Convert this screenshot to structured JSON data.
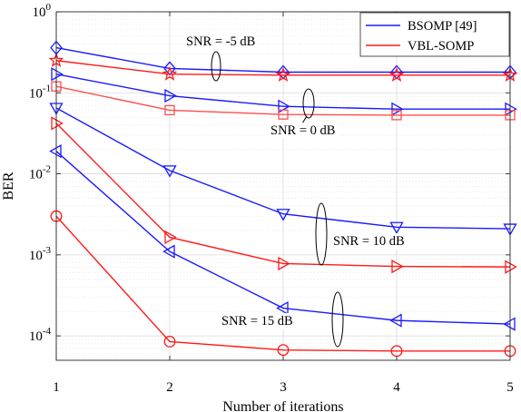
{
  "chart_data": {
    "type": "line",
    "xlabel": "Number of iterations",
    "ylabel": "BER",
    "y_scale": "log",
    "ylim": [
      5e-05,
      1
    ],
    "xlim": [
      1,
      5
    ],
    "x_ticks": [
      1,
      2,
      3,
      4,
      5
    ],
    "y_ticks": [
      {
        "value": 1,
        "mantissa": "10",
        "exp": "0"
      },
      {
        "value": 0.1,
        "mantissa": "10",
        "exp": "-1"
      },
      {
        "value": 0.01,
        "mantissa": "10",
        "exp": "-2"
      },
      {
        "value": 0.001,
        "mantissa": "10",
        "exp": "-3"
      },
      {
        "value": 0.0001,
        "mantissa": "10",
        "exp": "-4"
      }
    ],
    "grid": true,
    "legend_position": "top-right",
    "legend": [
      {
        "label": "BSOMP [49]",
        "color": "#1a1aff"
      },
      {
        "label": "VBL-SOMP",
        "color": "#ff1a1a"
      }
    ],
    "x": [
      1,
      2,
      3,
      4,
      5
    ],
    "series": [
      {
        "group": "SNR = -5 dB",
        "method": "BSOMP",
        "color": "#1a1aff",
        "marker": "diamond",
        "values": [
          0.36,
          0.2,
          0.18,
          0.18,
          0.18
        ]
      },
      {
        "group": "SNR = -5 dB",
        "method": "VBL-SOMP",
        "color": "#ff1a1a",
        "marker": "star",
        "values": [
          0.25,
          0.17,
          0.165,
          0.165,
          0.165
        ]
      },
      {
        "group": "SNR = 0 dB",
        "method": "BSOMP",
        "color": "#1a1aff",
        "marker": "triangle-right",
        "values": [
          0.17,
          0.092,
          0.068,
          0.063,
          0.063
        ]
      },
      {
        "group": "SNR = 0 dB",
        "method": "VBL-SOMP",
        "color": "#ff4d4d",
        "marker": "square",
        "values": [
          0.12,
          0.061,
          0.054,
          0.053,
          0.053
        ]
      },
      {
        "group": "SNR = 10 dB",
        "method": "BSOMP",
        "color": "#1a1aff",
        "marker": "triangle-down",
        "values": [
          0.065,
          0.011,
          0.0032,
          0.0022,
          0.0021
        ]
      },
      {
        "group": "SNR = 10 dB",
        "method": "VBL-SOMP",
        "color": "#ff1a1a",
        "marker": "triangle-right",
        "values": [
          0.042,
          0.00165,
          0.00078,
          0.00072,
          0.00071
        ]
      },
      {
        "group": "SNR = 15 dB",
        "method": "BSOMP",
        "color": "#1a1aff",
        "marker": "triangle-left",
        "values": [
          0.019,
          0.0011,
          0.00022,
          0.000155,
          0.00014
        ]
      },
      {
        "group": "SNR = 15 dB",
        "method": "VBL-SOMP",
        "color": "#ff1a1a",
        "marker": "circle",
        "values": [
          0.003,
          8.5e-05,
          6.7e-05,
          6.5e-05,
          6.5e-05
        ]
      }
    ],
    "annotations": [
      {
        "text": "SNR = -5 dB"
      },
      {
        "text": "SNR = 0 dB"
      },
      {
        "text": "SNR = 10 dB"
      },
      {
        "text": "SNR = 15 dB"
      }
    ]
  }
}
